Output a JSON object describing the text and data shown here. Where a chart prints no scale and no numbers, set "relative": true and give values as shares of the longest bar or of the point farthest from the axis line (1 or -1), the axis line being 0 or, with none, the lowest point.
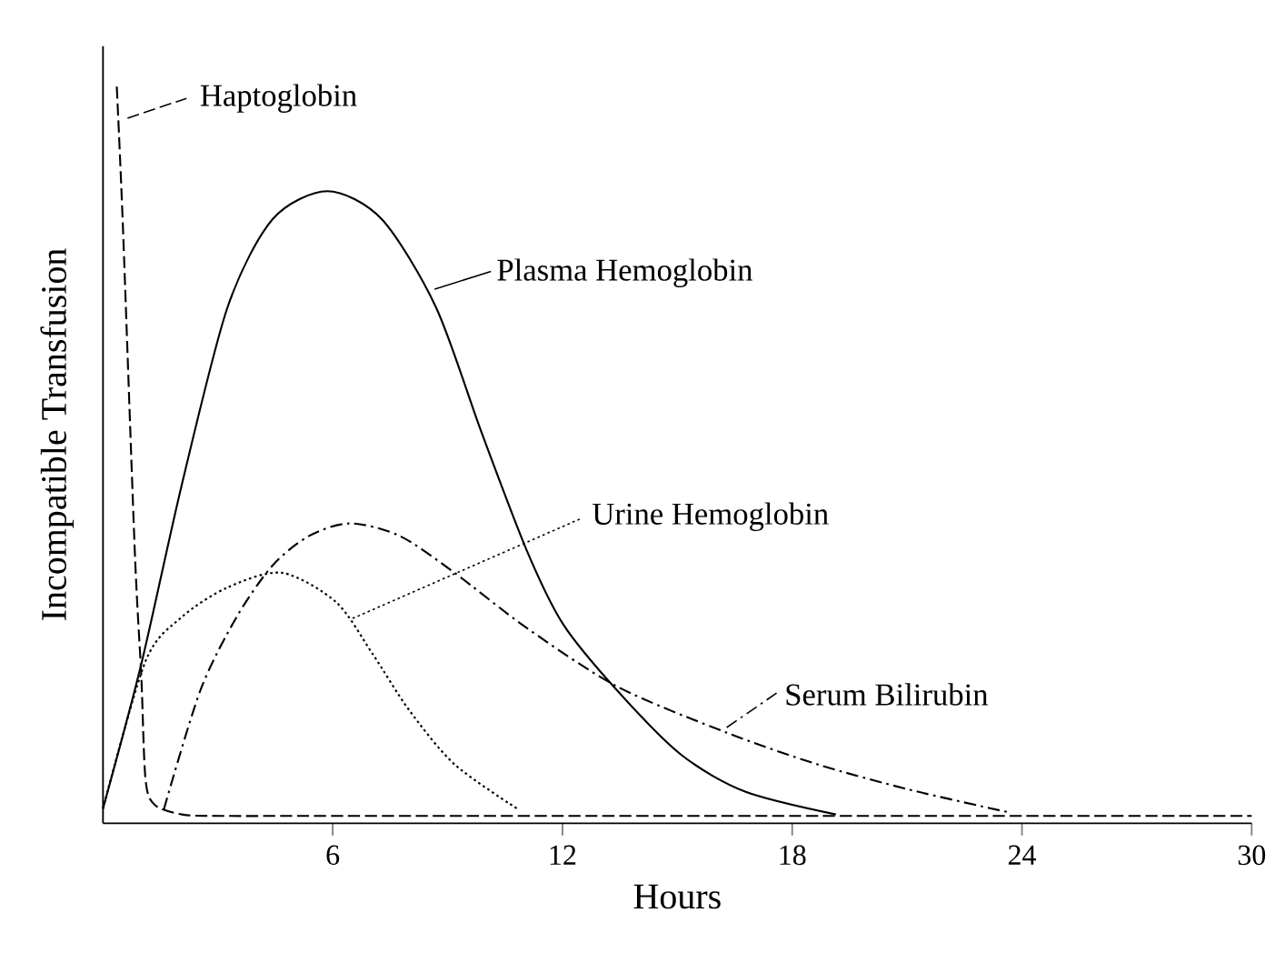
{
  "chart_data": {
    "type": "line",
    "relative": true,
    "xlabel": "Hours",
    "ylabel": "Incompatible Transfusion",
    "xlim": [
      0,
      30
    ],
    "legend": "top left",
    "xticks": [
      6,
      12,
      18,
      24,
      30
    ],
    "series": [
      {
        "name": "Haptoglobin",
        "color": "#000000",
        "line_style": "dashed",
        "x": [
          0.36,
          0.52,
          0.83,
          1.0,
          1.11,
          1.35,
          2.06,
          3,
          6,
          12,
          18,
          24,
          30
        ],
        "values": [
          1.0,
          0.81,
          0.37,
          0.2,
          0.06,
          0.025,
          0.012,
          0.01,
          0.01,
          0.01,
          0.01,
          0.01,
          0.01
        ]
      },
      {
        "name": "Plasma Hemoglobin",
        "color": "#000000",
        "line_style": "solid",
        "x": [
          0,
          1.0,
          2.06,
          3.25,
          4.43,
          5.86,
          7.28,
          8.7,
          9.89,
          11.07,
          12.02,
          13.45,
          15.1,
          16.77,
          19.14
        ],
        "values": [
          0.02,
          0.216,
          0.46,
          0.7,
          0.82,
          0.858,
          0.82,
          0.7,
          0.53,
          0.37,
          0.27,
          0.179,
          0.093,
          0.043,
          0.012
        ]
      },
      {
        "name": "Urine Hemoglobin",
        "color": "#000000",
        "line_style": "dotted",
        "x": [
          0,
          1.11,
          2.06,
          3.25,
          4.67,
          6.09,
          7.04,
          7.99,
          9.18,
          10.84
        ],
        "values": [
          0.02,
          0.22,
          0.28,
          0.32,
          0.34,
          0.3,
          0.23,
          0.154,
          0.08,
          0.019
        ]
      },
      {
        "name": "Serum Bilirubin",
        "color": "#000000",
        "line_style": "dashdot",
        "x": [
          1.59,
          2.54,
          3.49,
          4.43,
          5.38,
          6.45,
          7.75,
          9.18,
          11.07,
          13.45,
          16.29,
          18.66,
          21.03,
          23.64
        ],
        "values": [
          0.019,
          0.18,
          0.28,
          0.35,
          0.39,
          0.407,
          0.39,
          0.34,
          0.265,
          0.185,
          0.123,
          0.08,
          0.046,
          0.015
        ]
      }
    ]
  }
}
